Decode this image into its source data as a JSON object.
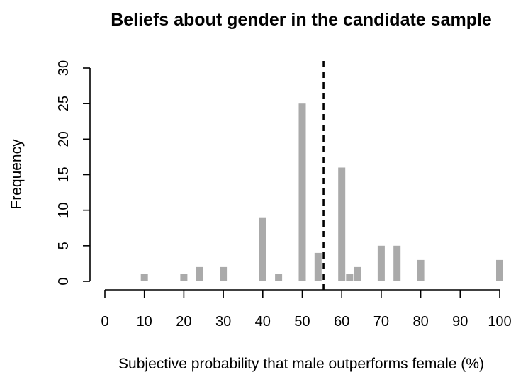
{
  "chart_data": {
    "type": "bar",
    "title": "Beliefs about gender in the candidate sample",
    "xlabel": "Subjective probability that male outperforms female (%)",
    "ylabel": "Frequency",
    "xlim": [
      0,
      100
    ],
    "ylim": [
      0,
      30
    ],
    "x_ticks": [
      "0",
      "10",
      "20",
      "30",
      "40",
      "50",
      "60",
      "70",
      "80",
      "90",
      "100"
    ],
    "y_ticks": [
      "0",
      "5",
      "10",
      "15",
      "20",
      "25",
      "30"
    ],
    "bar_color": "#aaaaaa",
    "reference_line": {
      "x": 55.4,
      "style": "dashed",
      "color": "#000000"
    },
    "bars": [
      {
        "x": 10,
        "count": 1
      },
      {
        "x": 20,
        "count": 1
      },
      {
        "x": 24,
        "count": 2
      },
      {
        "x": 30,
        "count": 2
      },
      {
        "x": 40,
        "count": 9
      },
      {
        "x": 44,
        "count": 1
      },
      {
        "x": 50,
        "count": 25
      },
      {
        "x": 54,
        "count": 4
      },
      {
        "x": 60,
        "count": 16
      },
      {
        "x": 62,
        "count": 1
      },
      {
        "x": 64,
        "count": 2
      },
      {
        "x": 70,
        "count": 5
      },
      {
        "x": 74,
        "count": 5
      },
      {
        "x": 80,
        "count": 3
      },
      {
        "x": 100,
        "count": 3
      }
    ]
  }
}
